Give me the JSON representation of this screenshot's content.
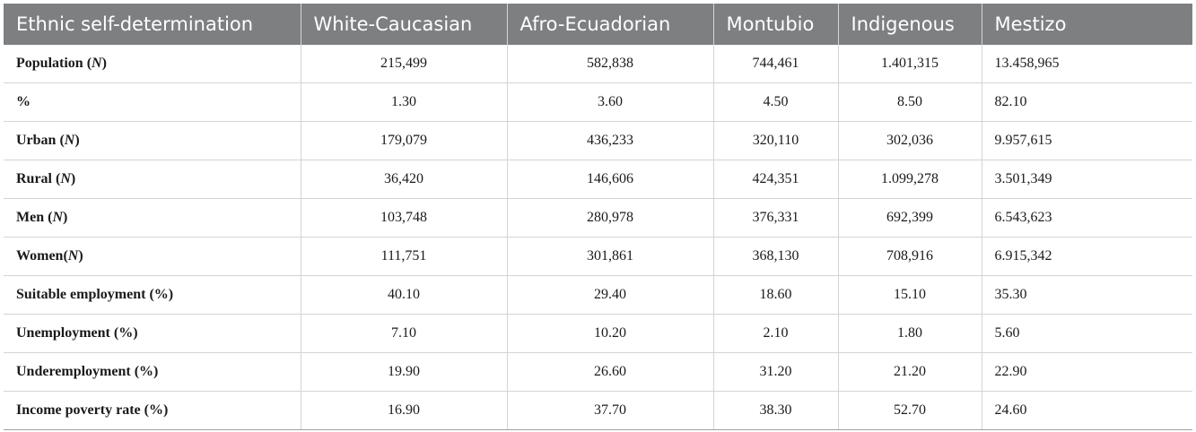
{
  "table": {
    "columns": [
      "Ethnic self-determination",
      "White-Caucasian",
      "Afro-Ecuadorian",
      "Montubio",
      "Indigenous",
      "Mestizo"
    ],
    "rows": [
      {
        "label_pre": "Population (",
        "label_italic": "N",
        "label_post": ")",
        "values": [
          "215,499",
          "582,838",
          "744,461",
          "1.401,315",
          "13.458,965"
        ]
      },
      {
        "label_pre": "%",
        "label_italic": "",
        "label_post": "",
        "values": [
          "1.30",
          "3.60",
          "4.50",
          "8.50",
          "82.10"
        ]
      },
      {
        "label_pre": "Urban (",
        "label_italic": "N",
        "label_post": ")",
        "values": [
          "179,079",
          "436,233",
          "320,110",
          "302,036",
          "9.957,615"
        ]
      },
      {
        "label_pre": "Rural (",
        "label_italic": "N",
        "label_post": ")",
        "values": [
          "36,420",
          "146,606",
          "424,351",
          "1.099,278",
          "3.501,349"
        ]
      },
      {
        "label_pre": "Men (",
        "label_italic": "N",
        "label_post": ")",
        "values": [
          "103,748",
          "280,978",
          "376,331",
          "692,399",
          "6.543,623"
        ]
      },
      {
        "label_pre": "Women(",
        "label_italic": "N",
        "label_post": ")",
        "values": [
          "111,751",
          "301,861",
          "368,130",
          "708,916",
          "6.915,342"
        ]
      },
      {
        "label_pre": "Suitable employment (%)",
        "label_italic": "",
        "label_post": "",
        "values": [
          "40.10",
          "29.40",
          "18.60",
          "15.10",
          "35.30"
        ]
      },
      {
        "label_pre": "Unemployment (%)",
        "label_italic": "",
        "label_post": "",
        "values": [
          "7.10",
          "10.20",
          "2.10",
          "1.80",
          "5.60"
        ]
      },
      {
        "label_pre": "Underemployment (%)",
        "label_italic": "",
        "label_post": "",
        "values": [
          "19.90",
          "26.60",
          "31.20",
          "21.20",
          "22.90"
        ]
      },
      {
        "label_pre": "Income poverty rate (%)",
        "label_italic": "",
        "label_post": "",
        "values": [
          "16.90",
          "37.70",
          "38.30",
          "52.70",
          "24.60"
        ]
      }
    ]
  }
}
